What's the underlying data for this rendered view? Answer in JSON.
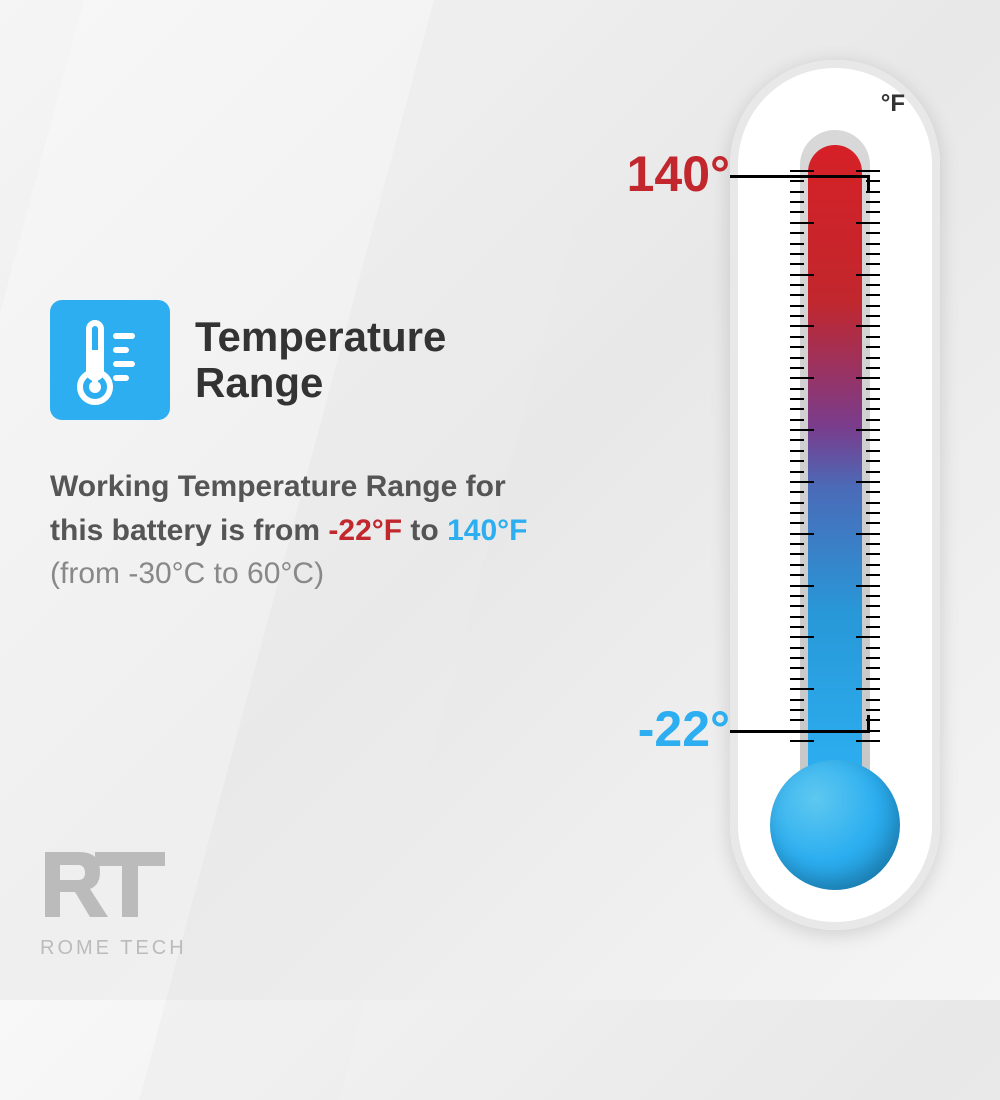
{
  "header": {
    "title": "Temperature Range",
    "icon_bg": "#2CAEF0"
  },
  "body": {
    "prefix": "Working Temperature Range for this battery is from ",
    "low_f": "-22°F",
    "mid": " to ",
    "high_f": "140°F",
    "celsius": "(from -30°C to 60°C)"
  },
  "thermometer": {
    "unit_label": "°F",
    "high_label": "140°",
    "low_label": "-22°",
    "high_color": "#C1272D",
    "low_color": "#2CAEF0",
    "gradient_top": "#d62027",
    "gradient_bottom": "#2caef0",
    "body_bg": "#ffffff",
    "border_color": "#e8e8e8"
  },
  "logo": {
    "mark": "RT",
    "text": "ROME TECH",
    "color": "#bbbbbb"
  },
  "colors": {
    "text_dark": "#333333",
    "text_body": "#555555",
    "text_muted": "#888888"
  }
}
